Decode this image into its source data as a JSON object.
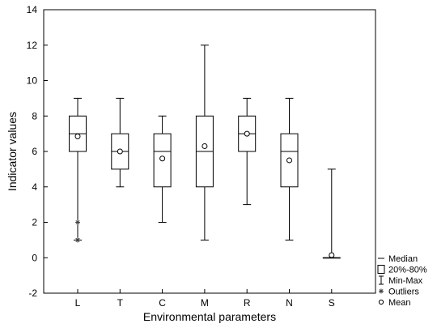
{
  "chart_data": {
    "type": "box",
    "xlabel": "Environmental parameters",
    "ylabel": "Indicator values",
    "ylim": [
      -2,
      14
    ],
    "yticks": [
      -2,
      0,
      2,
      4,
      6,
      8,
      10,
      12,
      14
    ],
    "grid": false,
    "legend_position": "right-bottom",
    "categories": [
      "L",
      "T",
      "C",
      "M",
      "R",
      "N",
      "S"
    ],
    "boxes": [
      {
        "category": "L",
        "min": 1,
        "q_low": 6,
        "median": 7,
        "q_high": 8,
        "max": 9,
        "mean": 6.85,
        "outliers": [
          2,
          1,
          1
        ]
      },
      {
        "category": "T",
        "min": 4,
        "q_low": 5,
        "median": 6,
        "q_high": 7,
        "max": 9,
        "mean": 6.0,
        "outliers": []
      },
      {
        "category": "C",
        "min": 2,
        "q_low": 4,
        "median": 6,
        "q_high": 7,
        "max": 8,
        "mean": 5.6,
        "outliers": []
      },
      {
        "category": "M",
        "min": 1,
        "q_low": 4,
        "median": 6,
        "q_high": 8,
        "max": 12,
        "mean": 6.3,
        "outliers": []
      },
      {
        "category": "R",
        "min": 3,
        "q_low": 6,
        "median": 7,
        "q_high": 8,
        "max": 9,
        "mean": 7.0,
        "outliers": []
      },
      {
        "category": "N",
        "min": 1,
        "q_low": 4,
        "median": 6,
        "q_high": 7,
        "max": 9,
        "mean": 5.5,
        "outliers": []
      },
      {
        "category": "S",
        "min": 0,
        "q_low": 0,
        "median": 0,
        "q_high": 0,
        "max": 5,
        "mean": 0.15,
        "outliers": []
      }
    ],
    "legend": [
      {
        "symbol": "median",
        "label": "Median"
      },
      {
        "symbol": "box",
        "label": "20%-80%"
      },
      {
        "symbol": "whisker",
        "label": "Min-Max"
      },
      {
        "symbol": "outlier",
        "label": "Outliers"
      },
      {
        "symbol": "mean",
        "label": "Mean"
      }
    ]
  }
}
